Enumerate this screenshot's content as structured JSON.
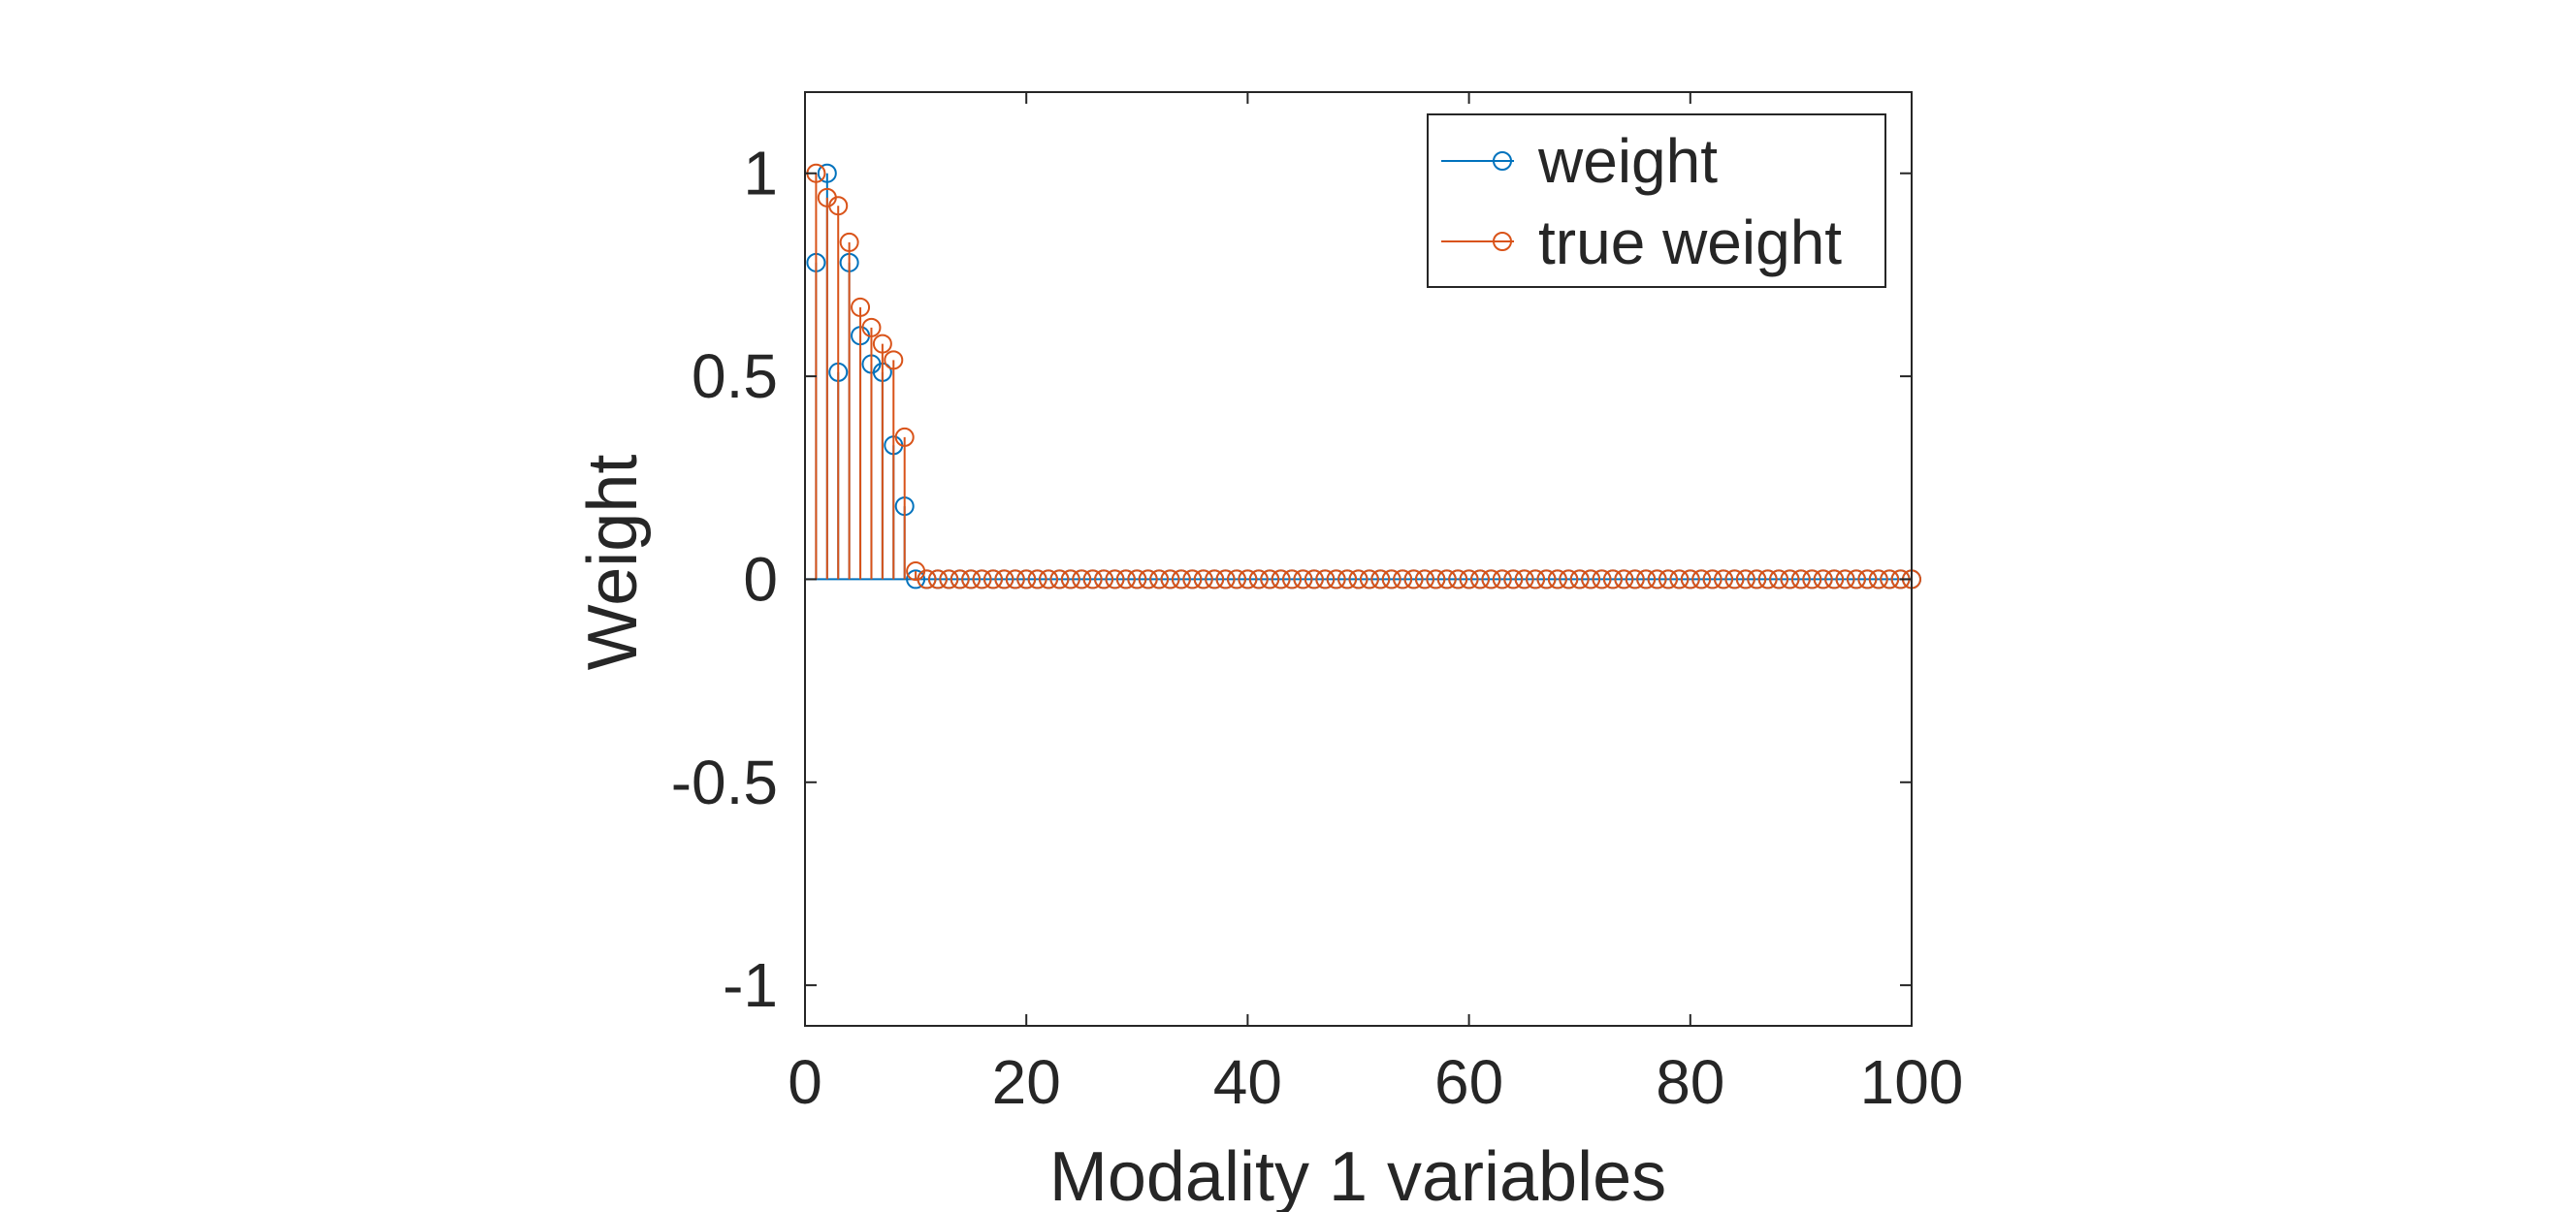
{
  "chart_data": {
    "type": "stem",
    "xlabel": "Modality 1 variables",
    "ylabel": "Weight",
    "xlim": [
      0,
      100
    ],
    "ylim": [
      -1.1,
      1.2
    ],
    "xticks": [
      0,
      20,
      40,
      60,
      80,
      100
    ],
    "xtick_labels": [
      "0",
      "20",
      "40",
      "60",
      "80",
      "100"
    ],
    "yticks": [
      -1,
      -0.5,
      0,
      0.5,
      1
    ],
    "ytick_labels": [
      "-1",
      "-0.5",
      "0",
      "0.5",
      "1"
    ],
    "grid": false,
    "box": true,
    "legend_position": "top-right",
    "series": [
      {
        "name": "weight",
        "color": "#0072BD",
        "marker": "circle-open",
        "x": [
          1,
          2,
          3,
          4,
          5,
          6,
          7,
          8,
          9,
          10,
          11,
          12,
          13,
          14,
          15,
          16,
          17,
          18,
          19,
          20,
          21,
          22,
          23,
          24,
          25,
          26,
          27,
          28,
          29,
          30,
          31,
          32,
          33,
          34,
          35,
          36,
          37,
          38,
          39,
          40,
          41,
          42,
          43,
          44,
          45,
          46,
          47,
          48,
          49,
          50,
          51,
          52,
          53,
          54,
          55,
          56,
          57,
          58,
          59,
          60,
          61,
          62,
          63,
          64,
          65,
          66,
          67,
          68,
          69,
          70,
          71,
          72,
          73,
          74,
          75,
          76,
          77,
          78,
          79,
          80,
          81,
          82,
          83,
          84,
          85,
          86,
          87,
          88,
          89,
          90,
          91,
          92,
          93,
          94,
          95,
          96,
          97,
          98,
          99,
          100
        ],
        "values": [
          0.78,
          1.0,
          0.51,
          0.78,
          0.6,
          0.53,
          0.51,
          0.33,
          0.18,
          0.0,
          0,
          0,
          0,
          0,
          0,
          0,
          0,
          0,
          0,
          0,
          0,
          0,
          0,
          0,
          0,
          0,
          0,
          0,
          0,
          0,
          0,
          0,
          0,
          0,
          0,
          0,
          0,
          0,
          0,
          0,
          0,
          0,
          0,
          0,
          0,
          0,
          0,
          0,
          0,
          0,
          0,
          0,
          0,
          0,
          0,
          0,
          0,
          0,
          0,
          0,
          0,
          0,
          0,
          0,
          0,
          0,
          0,
          0,
          0,
          0,
          0,
          0,
          0,
          0,
          0,
          0,
          0,
          0,
          0,
          0,
          0,
          0,
          0,
          0,
          0,
          0,
          0,
          0,
          0,
          0,
          0,
          0,
          0,
          0,
          0,
          0,
          0,
          0,
          0,
          0
        ]
      },
      {
        "name": "true weight",
        "color": "#D95319",
        "marker": "circle-open",
        "x": [
          1,
          2,
          3,
          4,
          5,
          6,
          7,
          8,
          9,
          10,
          11,
          12,
          13,
          14,
          15,
          16,
          17,
          18,
          19,
          20,
          21,
          22,
          23,
          24,
          25,
          26,
          27,
          28,
          29,
          30,
          31,
          32,
          33,
          34,
          35,
          36,
          37,
          38,
          39,
          40,
          41,
          42,
          43,
          44,
          45,
          46,
          47,
          48,
          49,
          50,
          51,
          52,
          53,
          54,
          55,
          56,
          57,
          58,
          59,
          60,
          61,
          62,
          63,
          64,
          65,
          66,
          67,
          68,
          69,
          70,
          71,
          72,
          73,
          74,
          75,
          76,
          77,
          78,
          79,
          80,
          81,
          82,
          83,
          84,
          85,
          86,
          87,
          88,
          89,
          90,
          91,
          92,
          93,
          94,
          95,
          96,
          97,
          98,
          99,
          100
        ],
        "values": [
          1.0,
          0.94,
          0.92,
          0.83,
          0.67,
          0.62,
          0.58,
          0.54,
          0.35,
          0.02,
          0,
          0,
          0,
          0,
          0,
          0,
          0,
          0,
          0,
          0,
          0,
          0,
          0,
          0,
          0,
          0,
          0,
          0,
          0,
          0,
          0,
          0,
          0,
          0,
          0,
          0,
          0,
          0,
          0,
          0,
          0,
          0,
          0,
          0,
          0,
          0,
          0,
          0,
          0,
          0,
          0,
          0,
          0,
          0,
          0,
          0,
          0,
          0,
          0,
          0,
          0,
          0,
          0,
          0,
          0,
          0,
          0,
          0,
          0,
          0,
          0,
          0,
          0,
          0,
          0,
          0,
          0,
          0,
          0,
          0,
          0,
          0,
          0,
          0,
          0,
          0,
          0,
          0,
          0,
          0,
          0,
          0,
          0,
          0,
          0,
          0,
          0,
          0,
          0,
          0
        ]
      }
    ]
  }
}
